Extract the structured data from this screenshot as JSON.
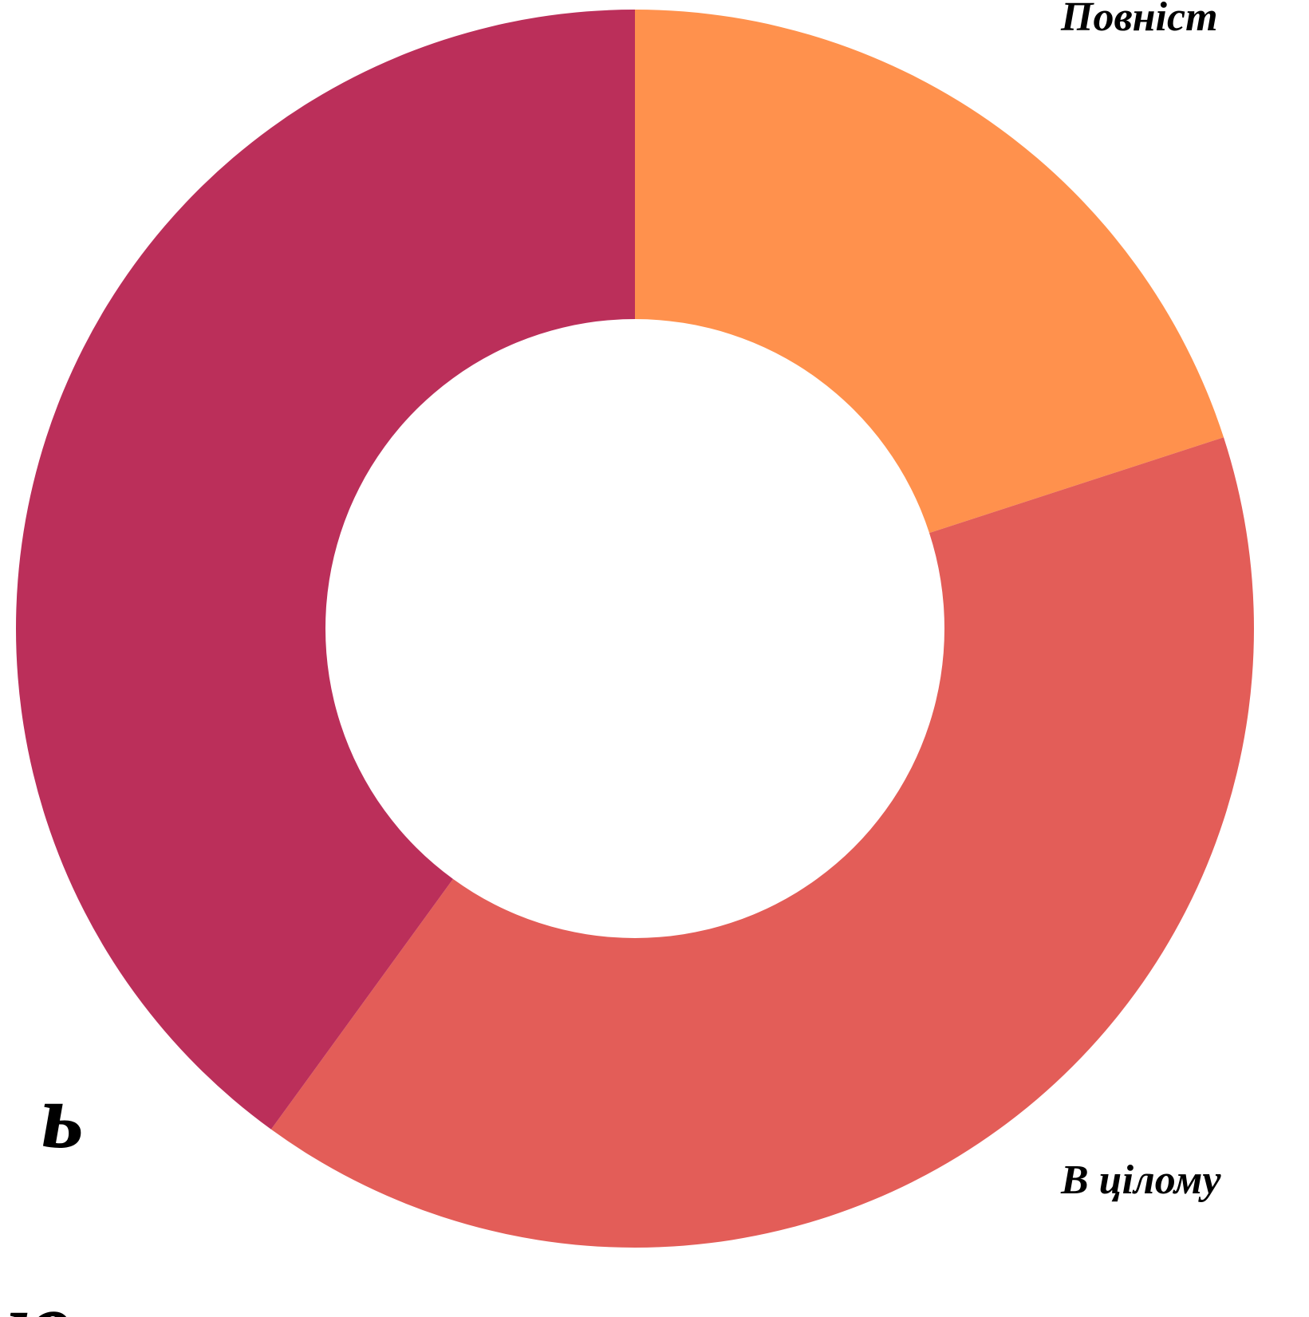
{
  "chart_data": {
    "type": "donut",
    "categories": [
      "Повніст",
      "В цілому",
      "ь"
    ],
    "values": [
      20,
      40,
      40
    ],
    "colors": [
      "#ff914d",
      "#e35d58",
      "#bb2f5a"
    ],
    "annotations": [
      "ю,"
    ]
  }
}
